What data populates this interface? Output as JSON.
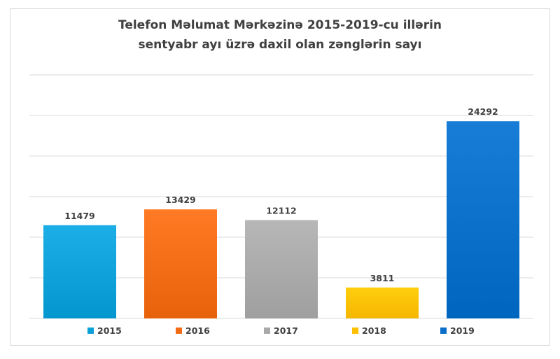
{
  "chart_data": {
    "type": "bar",
    "title_line1": "Telefon Məlumat Mərkəzinə 2015-2019-cu illərin",
    "title_line2": "sentyabr ayı üzrə daxil olan zənglərin sayı",
    "categories": [
      "2015",
      "2016",
      "2017",
      "2018",
      "2019"
    ],
    "values": [
      11479,
      13429,
      12112,
      3811,
      24292
    ],
    "colors": [
      "#0ea0d9",
      "#f26c16",
      "#a9a9a9",
      "#ffc000",
      "#0a6fc9"
    ],
    "ylim": [
      0,
      30000
    ],
    "grid": true,
    "legend_position": "bottom"
  }
}
